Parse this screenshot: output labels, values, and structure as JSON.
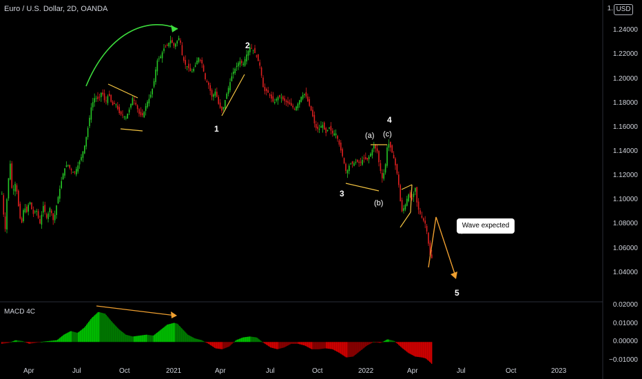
{
  "header": {
    "title": "Euro / U.S. Dollar, 2D, OANDA",
    "currency_badge": "USD",
    "price_stub": "1."
  },
  "macd": {
    "label": "MACD 4C"
  },
  "annotations": {
    "callout": "Wave expected",
    "waves": [
      {
        "text": "1"
      },
      {
        "text": "2"
      },
      {
        "text": "3"
      },
      {
        "text": "4"
      },
      {
        "text": "(a)"
      },
      {
        "text": "(b)"
      },
      {
        "text": "(c)"
      },
      {
        "text": "5"
      }
    ]
  },
  "colors": {
    "up": "#26c926",
    "down": "#e02020",
    "trendline": "#f5c542",
    "arrow": "#f0a030",
    "curve": "#3ddc3d",
    "background": "#000000"
  },
  "chart_data": {
    "type": "candlestick",
    "title": "Euro / U.S. Dollar, 2D, OANDA",
    "price_axis": {
      "ticks": [
        "1.24000",
        "1.22000",
        "1.20000",
        "1.18000",
        "1.16000",
        "1.14000",
        "1.12000",
        "1.10000",
        "1.08000",
        "1.06000",
        "1.04000"
      ],
      "range": [
        1.025,
        1.255
      ]
    },
    "macd_axis": {
      "ticks": [
        "0.02000",
        "0.01000",
        "0.00000",
        "−0.01000"
      ],
      "range": [
        -0.0135,
        0.0205
      ]
    },
    "time_axis": [
      "Apr",
      "Jul",
      "Oct",
      "2021",
      "Apr",
      "Jul",
      "Oct",
      "2022",
      "Apr",
      "Jul",
      "Oct",
      "2023"
    ],
    "price_path": [
      [
        0,
        1.105
      ],
      [
        2,
        1.09
      ],
      [
        5,
        1.075
      ],
      [
        8,
        1.11
      ],
      [
        12,
        1.13
      ],
      [
        15,
        1.105
      ],
      [
        20,
        1.115
      ],
      [
        24,
        1.095
      ],
      [
        28,
        1.078
      ],
      [
        32,
        1.095
      ],
      [
        36,
        1.09
      ],
      [
        40,
        1.1
      ],
      [
        45,
        1.088
      ],
      [
        50,
        1.092
      ],
      [
        55,
        1.08
      ],
      [
        60,
        1.095
      ],
      [
        65,
        1.085
      ],
      [
        70,
        1.094
      ],
      [
        75,
        1.082
      ],
      [
        80,
        1.098
      ],
      [
        85,
        1.112
      ],
      [
        90,
        1.125
      ],
      [
        95,
        1.13
      ],
      [
        100,
        1.125
      ],
      [
        105,
        1.122
      ],
      [
        110,
        1.128
      ],
      [
        115,
        1.135
      ],
      [
        120,
        1.145
      ],
      [
        125,
        1.16
      ],
      [
        130,
        1.178
      ],
      [
        135,
        1.185
      ],
      [
        140,
        1.183
      ],
      [
        145,
        1.19
      ],
      [
        150,
        1.18
      ],
      [
        155,
        1.188
      ],
      [
        160,
        1.178
      ],
      [
        165,
        1.18
      ],
      [
        170,
        1.172
      ],
      [
        175,
        1.17
      ],
      [
        180,
        1.168
      ],
      [
        185,
        1.175
      ],
      [
        190,
        1.185
      ],
      [
        195,
        1.178
      ],
      [
        200,
        1.17
      ],
      [
        205,
        1.17
      ],
      [
        210,
        1.18
      ],
      [
        215,
        1.185
      ],
      [
        220,
        1.195
      ],
      [
        225,
        1.215
      ],
      [
        230,
        1.218
      ],
      [
        235,
        1.225
      ],
      [
        240,
        1.228
      ],
      [
        245,
        1.232
      ],
      [
        250,
        1.227
      ],
      [
        255,
        1.232
      ],
      [
        258,
        1.235
      ],
      [
        262,
        1.218
      ],
      [
        266,
        1.212
      ],
      [
        270,
        1.21
      ],
      [
        275,
        1.205
      ],
      [
        280,
        1.21
      ],
      [
        285,
        1.218
      ],
      [
        290,
        1.214
      ],
      [
        295,
        1.2
      ],
      [
        300,
        1.195
      ],
      [
        305,
        1.185
      ],
      [
        310,
        1.19
      ],
      [
        315,
        1.178
      ],
      [
        320,
        1.173
      ],
      [
        325,
        1.185
      ],
      [
        330,
        1.195
      ],
      [
        335,
        1.205
      ],
      [
        340,
        1.21
      ],
      [
        345,
        1.215
      ],
      [
        350,
        1.212
      ],
      [
        355,
        1.22
      ],
      [
        360,
        1.226
      ],
      [
        365,
        1.224
      ],
      [
        370,
        1.218
      ],
      [
        375,
        1.21
      ],
      [
        380,
        1.19
      ],
      [
        385,
        1.19
      ],
      [
        390,
        1.185
      ],
      [
        395,
        1.18
      ],
      [
        400,
        1.185
      ],
      [
        405,
        1.185
      ],
      [
        410,
        1.182
      ],
      [
        415,
        1.18
      ],
      [
        420,
        1.178
      ],
      [
        425,
        1.175
      ],
      [
        430,
        1.18
      ],
      [
        435,
        1.186
      ],
      [
        440,
        1.188
      ],
      [
        445,
        1.18
      ],
      [
        450,
        1.172
      ],
      [
        455,
        1.16
      ],
      [
        460,
        1.158
      ],
      [
        465,
        1.163
      ],
      [
        470,
        1.155
      ],
      [
        475,
        1.16
      ],
      [
        480,
        1.155
      ],
      [
        485,
        1.155
      ],
      [
        490,
        1.145
      ],
      [
        495,
        1.135
      ],
      [
        500,
        1.122
      ],
      [
        505,
        1.13
      ],
      [
        510,
        1.13
      ],
      [
        515,
        1.132
      ],
      [
        520,
        1.13
      ],
      [
        525,
        1.135
      ],
      [
        530,
        1.133
      ],
      [
        535,
        1.138
      ],
      [
        540,
        1.145
      ],
      [
        545,
        1.14
      ],
      [
        548,
        1.128
      ],
      [
        552,
        1.118
      ],
      [
        556,
        1.125
      ],
      [
        560,
        1.148
      ],
      [
        563,
        1.145
      ],
      [
        566,
        1.14
      ],
      [
        570,
        1.132
      ],
      [
        575,
        1.118
      ],
      [
        580,
        1.09
      ],
      [
        585,
        1.095
      ],
      [
        590,
        1.105
      ],
      [
        595,
        1.1
      ],
      [
        600,
        1.11
      ],
      [
        603,
        1.095
      ],
      [
        606,
        1.09
      ],
      [
        610,
        1.085
      ],
      [
        615,
        1.08
      ],
      [
        618,
        1.07
      ],
      [
        621,
        1.055
      ],
      [
        624,
        1.052
      ]
    ],
    "macd_path": [
      [
        0,
        -0.001
      ],
      [
        10,
        -0.0005
      ],
      [
        20,
        0.001
      ],
      [
        30,
        0.0005
      ],
      [
        40,
        -0.001
      ],
      [
        60,
        0.0002
      ],
      [
        80,
        0.001
      ],
      [
        90,
        0.004
      ],
      [
        100,
        0.006
      ],
      [
        110,
        0.005
      ],
      [
        120,
        0.008
      ],
      [
        130,
        0.013
      ],
      [
        140,
        0.0165
      ],
      [
        150,
        0.0155
      ],
      [
        160,
        0.011
      ],
      [
        170,
        0.007
      ],
      [
        180,
        0.004
      ],
      [
        190,
        0.003
      ],
      [
        200,
        0.0035
      ],
      [
        210,
        0.004
      ],
      [
        220,
        0.0035
      ],
      [
        230,
        0.0065
      ],
      [
        240,
        0.0095
      ],
      [
        250,
        0.0105
      ],
      [
        255,
        0.01
      ],
      [
        260,
        0.008
      ],
      [
        270,
        0.004
      ],
      [
        280,
        0.002
      ],
      [
        290,
        0.001
      ],
      [
        300,
        -0.001
      ],
      [
        310,
        -0.0035
      ],
      [
        320,
        -0.004
      ],
      [
        330,
        -0.0025
      ],
      [
        340,
        0.001
      ],
      [
        350,
        0.0025
      ],
      [
        360,
        0.003
      ],
      [
        370,
        0.0025
      ],
      [
        380,
        -0.0005
      ],
      [
        390,
        -0.003
      ],
      [
        400,
        -0.004
      ],
      [
        410,
        -0.003
      ],
      [
        420,
        -0.001
      ],
      [
        430,
        -0.001
      ],
      [
        440,
        -0.002
      ],
      [
        450,
        -0.004
      ],
      [
        460,
        -0.004
      ],
      [
        470,
        -0.0035
      ],
      [
        480,
        -0.004
      ],
      [
        490,
        -0.006
      ],
      [
        500,
        -0.0085
      ],
      [
        510,
        -0.008
      ],
      [
        520,
        -0.005
      ],
      [
        530,
        -0.002
      ],
      [
        540,
        0.0
      ],
      [
        550,
        -0.0005
      ],
      [
        560,
        0.0015
      ],
      [
        570,
        0.0005
      ],
      [
        580,
        -0.003
      ],
      [
        590,
        -0.006
      ],
      [
        600,
        -0.008
      ],
      [
        610,
        -0.0085
      ],
      [
        615,
        -0.009
      ],
      [
        620,
        -0.0105
      ],
      [
        624,
        -0.012
      ]
    ]
  }
}
